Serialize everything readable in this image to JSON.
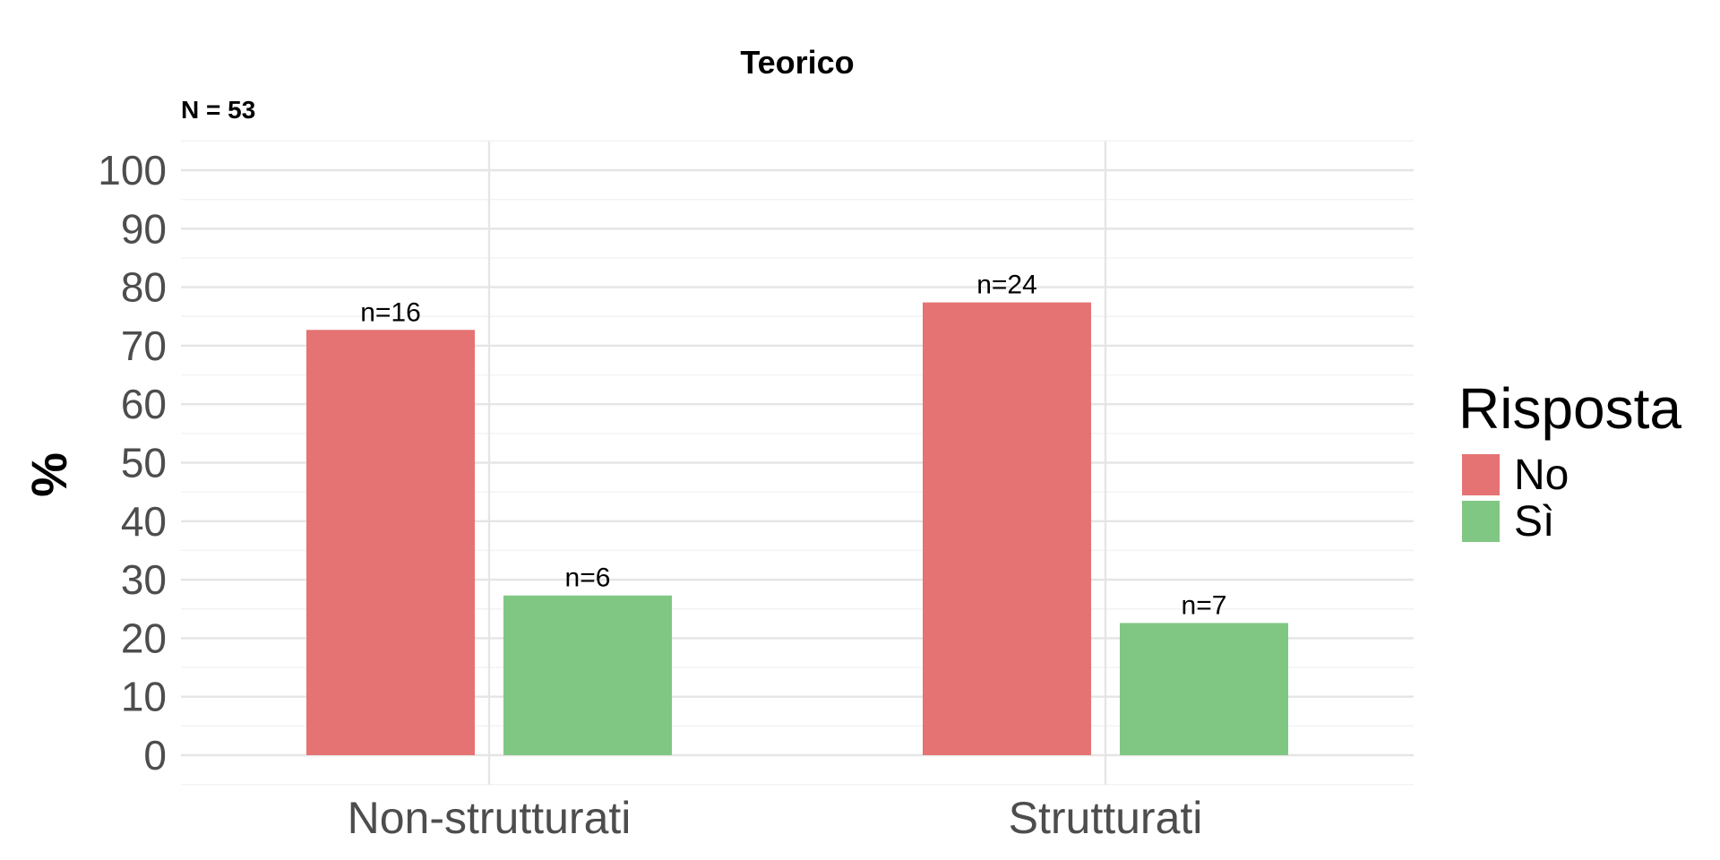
{
  "chart_data": {
    "type": "bar",
    "title": "Teorico",
    "subtitle": "N = 53",
    "xlabel": "",
    "ylabel": "%",
    "ylim": [
      0,
      100
    ],
    "yticks": [
      0,
      10,
      20,
      30,
      40,
      50,
      60,
      70,
      80,
      90,
      100
    ],
    "categories": [
      "Non-strutturati",
      "Strutturati"
    ],
    "series": [
      {
        "name": "No",
        "color": "#e57373",
        "values": [
          72.7,
          77.4
        ],
        "labels": [
          "n=16",
          "n=24"
        ]
      },
      {
        "name": "Sì",
        "color": "#81c784",
        "values": [
          27.3,
          22.6
        ],
        "labels": [
          "n=6",
          "n=7"
        ]
      }
    ],
    "legend": {
      "title": "Risposta",
      "position": "right"
    },
    "grid": true
  }
}
